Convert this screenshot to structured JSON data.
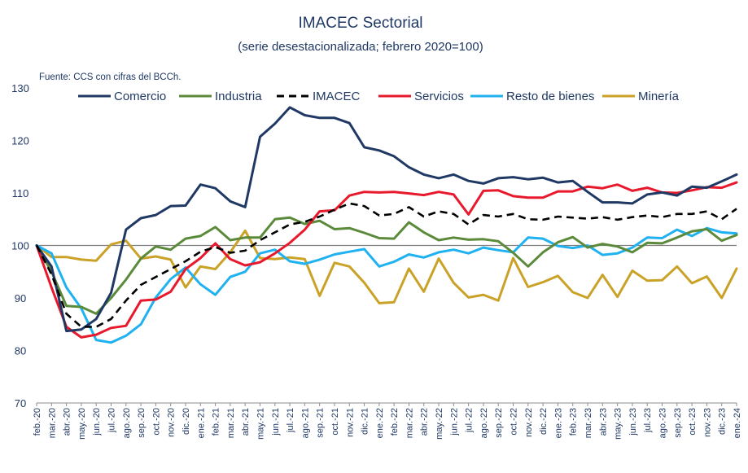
{
  "chart_data": {
    "type": "line",
    "title": "IMACEC  Sectorial",
    "subtitle": "(serie desestacionalizada; febrero 2020=100)",
    "source_note": "Fuente: CCS con cifras del BCCh.",
    "ylim": [
      70,
      130
    ],
    "yticks": [
      70,
      80,
      90,
      100,
      110,
      120,
      130
    ],
    "reference_line": 100,
    "grid": false,
    "legend_position": "top",
    "categories": [
      "feb.-20",
      "mar.-20",
      "abr.-20",
      "may.-20",
      "jun.-20",
      "jul.-20",
      "ago.-20",
      "sep.-20",
      "oct.-20",
      "nov.-20",
      "dic.-20",
      "ene.-21",
      "feb.-21",
      "mar.-21",
      "abr.-21",
      "may.-21",
      "jun.-21",
      "jul.-21",
      "ago.-21",
      "sep.-21",
      "oct.-21",
      "nov.-21",
      "dic.-21",
      "ene.-22",
      "feb.-22",
      "mar.-22",
      "abr.-22",
      "may.-22",
      "jun.-22",
      "jul.-22",
      "ago.-22",
      "sep.-22",
      "oct.-22",
      "nov.-22",
      "dic.-22",
      "ene.-23",
      "feb.-23",
      "mar.-23",
      "abr.-23",
      "may.-23",
      "jun.-23",
      "jul.-23",
      "ago.-23",
      "sep.-23",
      "oct.-23",
      "nov.-23",
      "dic.-23",
      "ene.-24"
    ],
    "series": [
      {
        "name": "Comercio",
        "color": "#1f3864",
        "dash": "solid",
        "values": [
          100,
          96,
          83.7,
          84,
          86,
          91,
          103,
          105.2,
          105.8,
          107.5,
          107.6,
          111.6,
          110.9,
          108.4,
          107.3,
          120.7,
          123.2,
          126.3,
          124.8,
          124.3,
          124.3,
          123.3,
          118.7,
          118.1,
          117,
          114.9,
          113.5,
          112.8,
          113.5,
          112.3,
          111.8,
          112.8,
          113,
          112.6,
          112.9,
          112,
          112.3,
          110.2,
          108.2,
          108.2,
          108,
          109.7,
          110.1,
          109.5,
          111.2,
          111,
          112.2,
          113.5
        ]
      },
      {
        "name": "Industria",
        "color": "#5b8a3a",
        "dash": "solid",
        "values": [
          100,
          95,
          88.5,
          88.3,
          87,
          90,
          93.5,
          97.5,
          99.8,
          99.2,
          101.3,
          101.8,
          103.5,
          101,
          101.5,
          101.5,
          105,
          105.3,
          104.1,
          104.7,
          103.1,
          103.3,
          102.4,
          101.4,
          101.3,
          104.4,
          102.5,
          101,
          101.5,
          101.1,
          101.2,
          100.8,
          98.6,
          96,
          98.7,
          100.6,
          101.6,
          99.6,
          100.3,
          99.8,
          98.7,
          100.5,
          100.4,
          101.5,
          102.7,
          103.1,
          100.9,
          102
        ]
      },
      {
        "name": "IMACEC",
        "color": "#000000",
        "dash": "9,6",
        "values": [
          100,
          94.5,
          87,
          84.5,
          84.5,
          86,
          89.5,
          92.5,
          94,
          95.5,
          97,
          98.8,
          99.7,
          98.6,
          99,
          101,
          102.5,
          104,
          104.5,
          105.5,
          106.8,
          108,
          107.5,
          105.7,
          106,
          107.3,
          105.5,
          106.5,
          106,
          104,
          105.8,
          105.5,
          106,
          105,
          104.9,
          105.5,
          105.3,
          105.1,
          105.4,
          104.9,
          105.4,
          105.7,
          105.4,
          106,
          106,
          106.5,
          105,
          107
        ]
      },
      {
        "name": "Servicios",
        "color": "#e8192c",
        "dash": "solid",
        "values": [
          100,
          92,
          84.5,
          82.5,
          83,
          84.3,
          84.7,
          89.5,
          89.7,
          91.2,
          95.5,
          97.6,
          100.4,
          97.4,
          96.2,
          96.8,
          98.5,
          100.5,
          103,
          106.5,
          106.7,
          109.5,
          110.2,
          110.1,
          110.2,
          109.9,
          109.6,
          110.2,
          109.7,
          105.9,
          110.4,
          110.5,
          109.4,
          109.1,
          109.1,
          110.3,
          110.3,
          111.2,
          110.9,
          111.6,
          110.4,
          111,
          110.1,
          110,
          110.5,
          111.1,
          111,
          112
        ]
      },
      {
        "name": "Resto de bienes",
        "color": "#1fb1f0",
        "dash": "solid",
        "values": [
          100,
          98.5,
          92,
          88,
          82,
          81.5,
          82.8,
          85,
          90.1,
          93.6,
          95.8,
          92.6,
          90.6,
          94,
          95,
          98.5,
          99.2,
          97,
          96.5,
          97.3,
          98.3,
          98.8,
          99.3,
          96,
          96.9,
          98.3,
          97.7,
          98.7,
          99.2,
          98.5,
          99.6,
          99.1,
          98.7,
          101.5,
          101.3,
          99.9,
          99.5,
          100,
          98.2,
          98.5,
          99.6,
          101.5,
          101.4,
          103,
          101.8,
          103.3,
          102.5,
          102.3
        ]
      },
      {
        "name": "Minería",
        "color": "#c9a227",
        "dash": "solid",
        "values": [
          100,
          97.8,
          97.8,
          97.3,
          97.1,
          100.2,
          100.9,
          97.5,
          97.9,
          97.3,
          92,
          96,
          95.5,
          98.7,
          102.8,
          97.6,
          97.4,
          97.7,
          97.4,
          90.4,
          96.7,
          96,
          92.9,
          89,
          89.2,
          95.6,
          91.2,
          97.5,
          92.9,
          90.1,
          90.6,
          89.5,
          97.6,
          92.1,
          93,
          94.2,
          91.1,
          90,
          94.4,
          90.2,
          95.2,
          93.3,
          93.4,
          96,
          92.8,
          94.1,
          90,
          95.6
        ]
      }
    ]
  }
}
